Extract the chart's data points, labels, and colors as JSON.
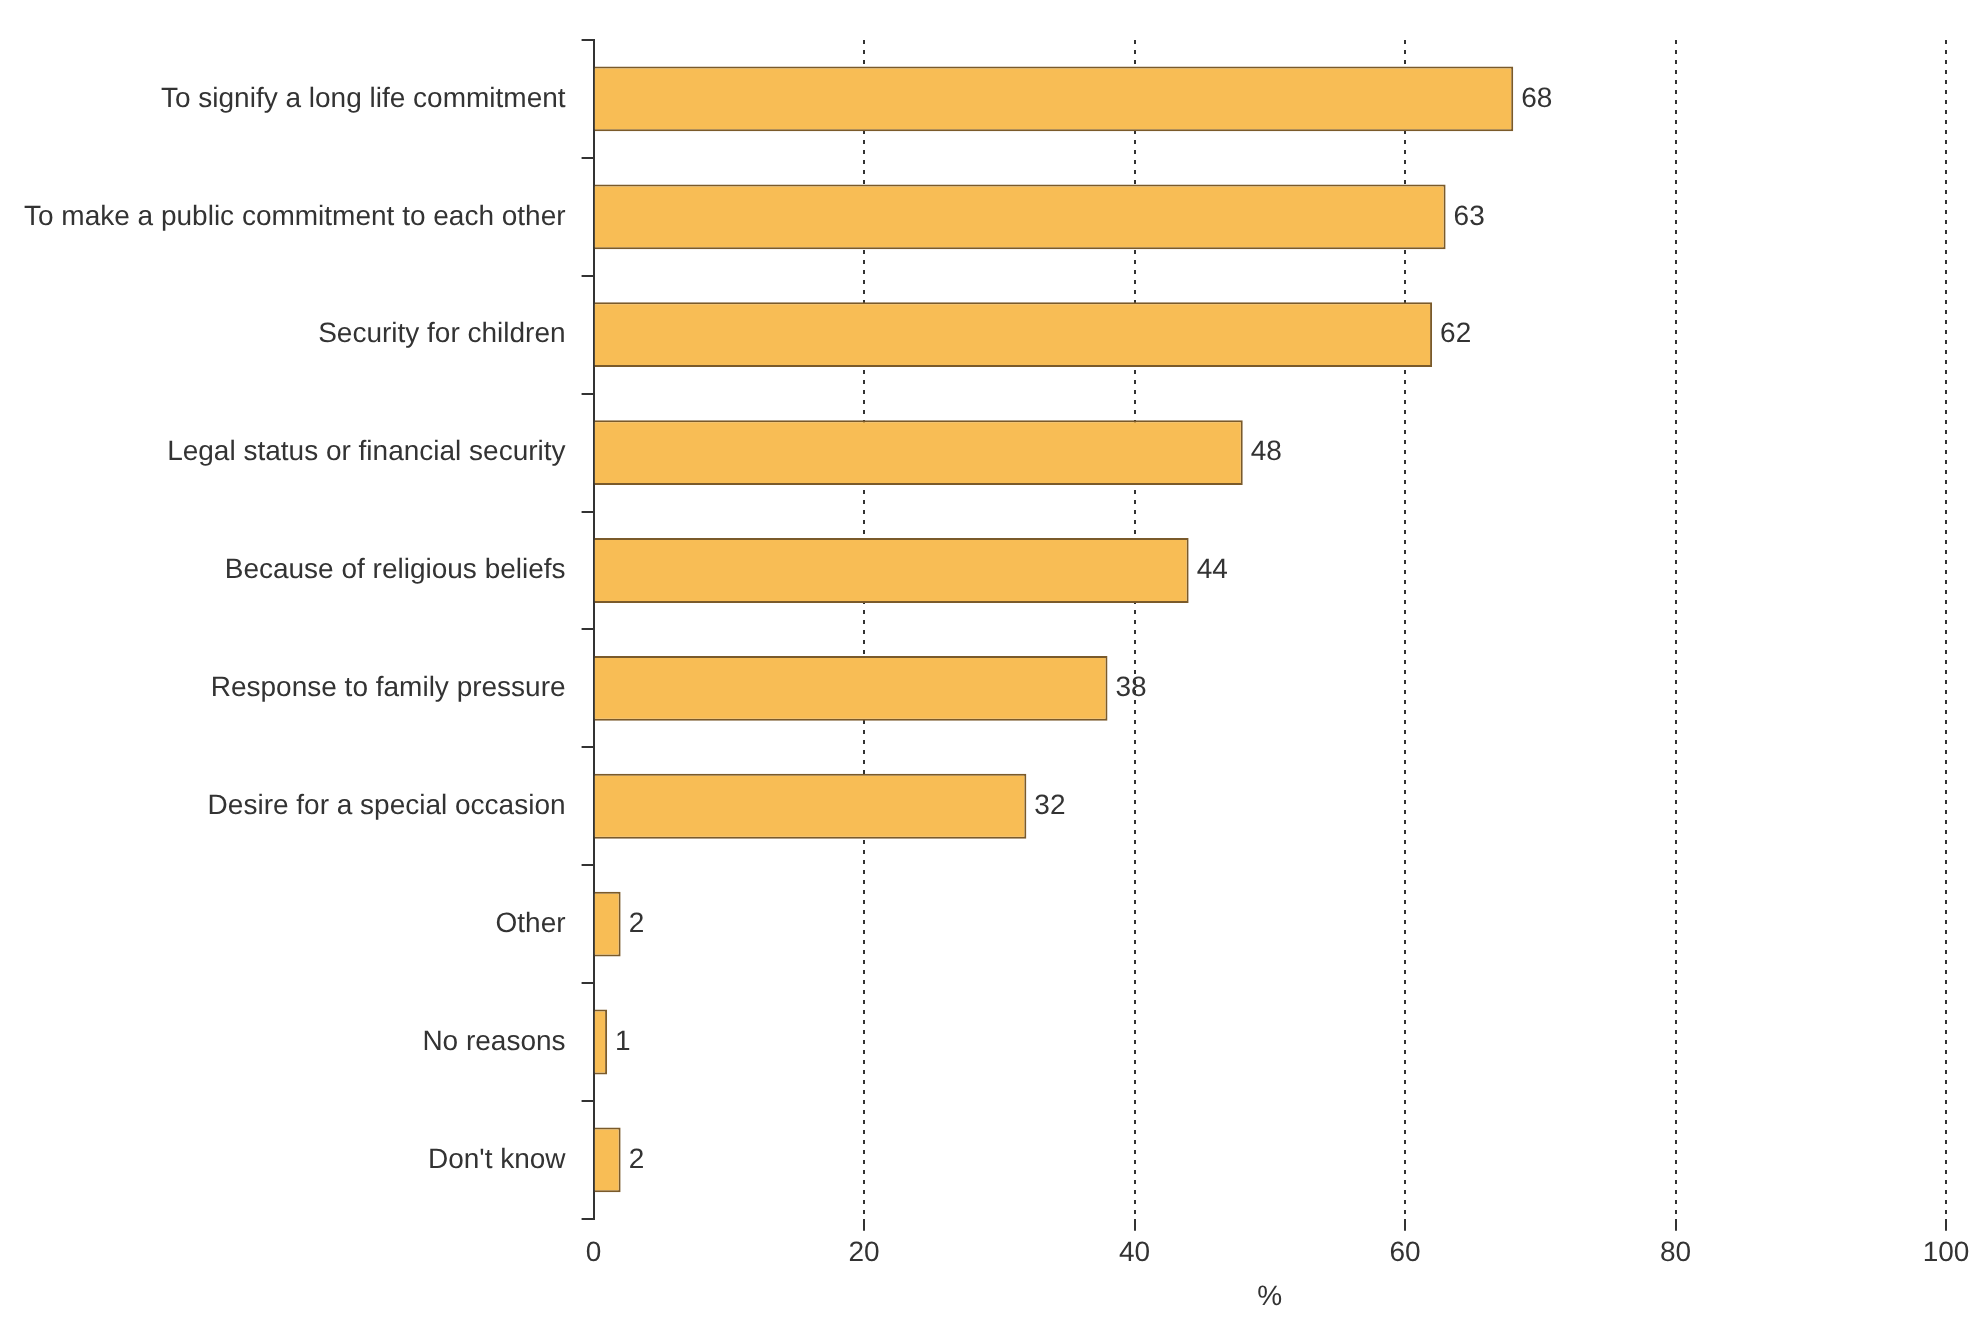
{
  "chart_data": {
    "type": "bar",
    "orientation": "horizontal",
    "xlabel": "%",
    "categories": [
      "To signify a long life commitment",
      "To make a public commitment to each other",
      "Security for children",
      "Legal status or financial security",
      "Because of religious beliefs",
      "Response to family pressure",
      "Desire for a special occasion",
      "Other",
      "No reasons",
      "Don't know"
    ],
    "values": [
      68,
      63,
      62,
      48,
      44,
      38,
      32,
      2,
      1,
      2
    ],
    "color": "#f8bd55",
    "xlim": [
      0,
      100
    ],
    "xticks": [
      0,
      20,
      40,
      60,
      80,
      100
    ],
    "grid": "x",
    "legend": false,
    "data_labels": true
  }
}
